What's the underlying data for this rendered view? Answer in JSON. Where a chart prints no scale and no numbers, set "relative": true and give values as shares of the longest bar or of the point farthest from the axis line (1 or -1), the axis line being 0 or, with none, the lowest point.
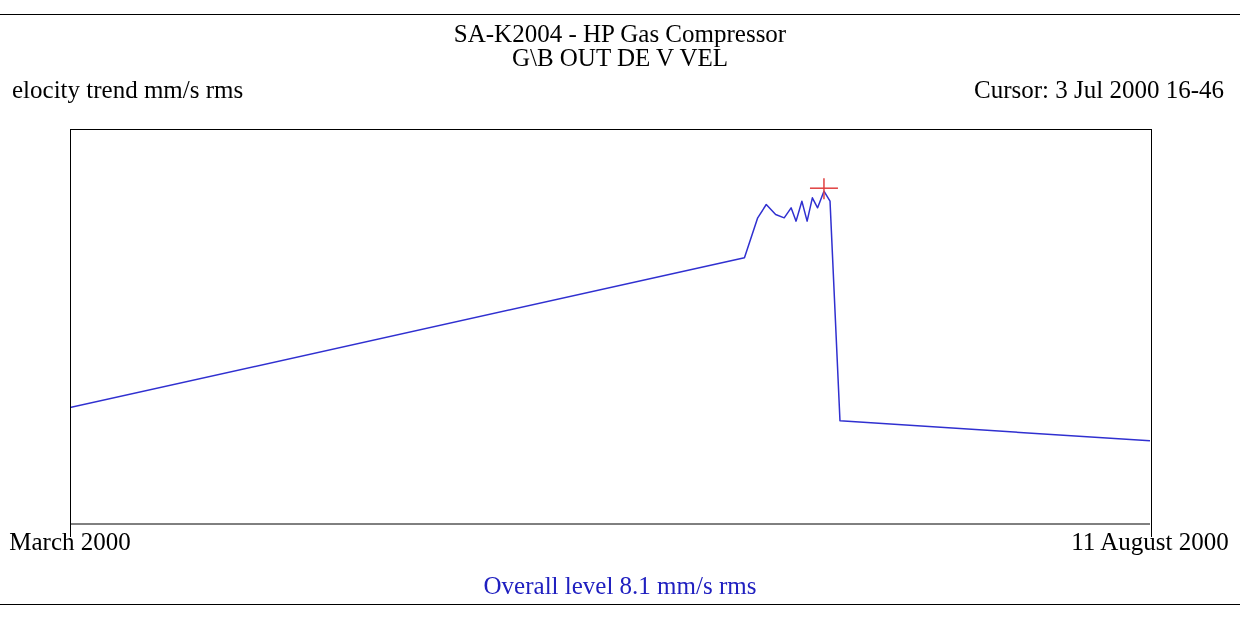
{
  "chart_data": {
    "type": "line",
    "title": "SA-K2004 - HP Gas Compressor",
    "subtitle": "G\\B OUT DE V VEL",
    "ylabel": "elocity trend mm/s rms",
    "relative": true,
    "x": [
      "2000-03-01T00:00",
      "2000-06-10T19:00",
      "2000-06-12T19:00",
      "2000-06-14T02:00",
      "2000-06-15T12:00",
      "2000-06-16T19:00",
      "2000-06-17T20:00",
      "2000-06-18T14:00",
      "2000-06-19T11:00",
      "2000-06-20T06:00",
      "2000-06-21T01:00",
      "2000-06-21T20:00",
      "2000-06-22T19:00",
      "2000-06-23T17:00",
      "2000-06-25T05:00",
      "2000-08-11T00:00"
    ],
    "series": [
      {
        "color": "#3030d0",
        "values": [
          0.35,
          0.8,
          0.92,
          0.96,
          0.93,
          0.92,
          0.95,
          0.91,
          0.97,
          0.91,
          0.98,
          0.95,
          1,
          0.97,
          0.31,
          0.25
        ]
      }
    ],
    "xlim": [
      "2000-03-01T00:00",
      "2000-08-11T00:00"
    ],
    "xticks": [
      {
        "value": "2000-03-01T00:00",
        "label": "March 2000"
      },
      {
        "value": "2000-08-11T00:00",
        "label": "11 August 2000"
      }
    ],
    "annotations": [
      "Cursor: 3 Jul 2000 16-46",
      "Overall level 8.1 mm/s rms"
    ],
    "grid": false,
    "legend": false,
    "marker": "none",
    "line_style": "solid"
  }
}
